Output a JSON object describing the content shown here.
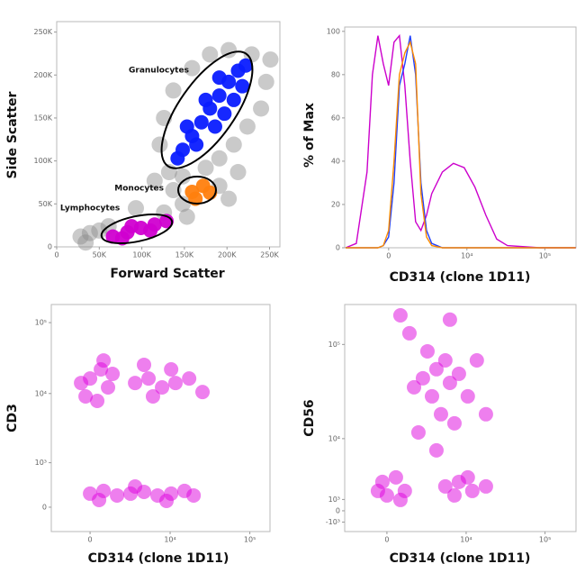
{
  "chart_data": [
    {
      "type": "scatter",
      "x_label": "Forward Scatter",
      "y_label": "Side Scatter",
      "xlim": [
        0,
        262144
      ],
      "ylim": [
        0,
        262144
      ],
      "xticks": [
        0,
        {
          "value": 50000,
          "label": "50K"
        },
        {
          "value": 100000,
          "label": "100K"
        },
        {
          "value": 150000,
          "label": "150K"
        },
        {
          "value": 200000,
          "label": "200K"
        },
        {
          "value": 250000,
          "label": "250K"
        }
      ],
      "yticks": [
        0,
        {
          "value": 50000,
          "label": "50K"
        },
        {
          "value": 100000,
          "label": "100K"
        },
        {
          "value": 150000,
          "label": "150K"
        },
        {
          "value": 200000,
          "label": "200K"
        },
        {
          "value": 250000,
          "label": "250K"
        }
      ],
      "series": [
        {
          "color": "#8a8a8a",
          "x": [
            28000,
            39000,
            50000,
            34000,
            61000,
            126000,
            148000,
            191000,
            202000,
            115000,
            132000,
            126000,
            137000,
            159000,
            180000,
            202000,
            229000,
            246000,
            240000,
            224000,
            208000,
            191000,
            175000,
            148000,
            93000,
            153000,
            213000,
            121000,
            251000,
            137000
          ],
          "y": [
            12000,
            16000,
            19000,
            5000,
            24000,
            40000,
            50000,
            71000,
            56000,
            77000,
            87000,
            150000,
            182000,
            208000,
            224000,
            229000,
            224000,
            192000,
            161000,
            140000,
            119000,
            103000,
            92000,
            82000,
            45000,
            35000,
            87000,
            119000,
            218000,
            66000
          ]
        },
        {
          "name": "Granulocytes",
          "color": "#0a1cff",
          "x": [
            148000,
            159000,
            170000,
            180000,
            191000,
            202000,
            213000,
            222000,
            142000,
            164000,
            186000,
            208000,
            175000,
            197000,
            218000,
            153000,
            191000
          ],
          "y": [
            113000,
            129000,
            145000,
            161000,
            176000,
            192000,
            205000,
            211000,
            103000,
            119000,
            140000,
            171000,
            171000,
            155000,
            187000,
            140000,
            197000
          ]
        },
        {
          "name": "Monocytes",
          "color": "#ff7f0e",
          "x": [
            159000,
            172000,
            180000,
            163000
          ],
          "y": [
            64000,
            71000,
            63000,
            56000
          ]
        },
        {
          "name": "Lymphocytes",
          "color": "#d000d0",
          "x": [
            66000,
            83000,
            99000,
            115000,
            129000,
            77000,
            110000,
            88000
          ],
          "y": [
            12000,
            17000,
            22000,
            26000,
            30000,
            10000,
            19000,
            24000
          ]
        }
      ]
    },
    {
      "type": "line",
      "x_label": "CD314 (clone 1D11)",
      "y_label": "% of Max",
      "xscale": "biexponential",
      "xlim": [
        -3400,
        250000
      ],
      "ylim": [
        0,
        102
      ],
      "xticks": [
        0,
        {
          "value": 10000,
          "label": "10⁴"
        },
        {
          "value": 100000,
          "label": "10⁵"
        }
      ],
      "yticks": [
        0,
        20,
        40,
        60,
        80,
        100
      ],
      "x": [
        -3300,
        -2220,
        -1370,
        -1000,
        -650,
        -320,
        0,
        320,
        650,
        1000,
        1370,
        1780,
        2220,
        2750,
        3300,
        4700,
        6650,
        9230,
        12700,
        17600,
        24200,
        33200,
        86300,
        248000
      ],
      "series": [
        {
          "color": "#cc00cc",
          "values": [
            0,
            2,
            35,
            80,
            98,
            85,
            75,
            95,
            98,
            75,
            40,
            12,
            8,
            15,
            25,
            35,
            39,
            37,
            28,
            15,
            4,
            1,
            0,
            0
          ]
        },
        {
          "color": "#2040ff",
          "values": [
            0,
            0,
            0,
            0,
            0,
            1,
            5,
            30,
            75,
            85,
            98,
            80,
            30,
            8,
            2,
            0,
            0,
            0,
            0,
            0,
            0,
            0,
            0,
            0
          ]
        },
        {
          "color": "#ff8c00",
          "values": [
            0,
            0,
            0,
            0,
            0,
            1,
            8,
            40,
            80,
            90,
            95,
            85,
            25,
            5,
            1,
            0,
            0,
            0,
            0,
            0,
            0,
            0,
            0,
            0
          ]
        }
      ]
    },
    {
      "type": "scatter",
      "x_label": "CD314 (clone 1D11)",
      "y_label": "CD3",
      "xscale": "biexponential",
      "yscale": "biexponential",
      "xlim": [
        -2750,
        178600
      ],
      "ylim": [
        -438,
        180000
      ],
      "xticks": [
        0,
        {
          "value": 10000,
          "label": "10⁴"
        },
        {
          "value": 100000,
          "label": "10⁵"
        }
      ],
      "yticks": [
        0,
        {
          "value": 1000,
          "label": "10³"
        },
        {
          "value": 10000,
          "label": "10⁴"
        },
        {
          "value": 100000,
          "label": "10⁵"
        }
      ],
      "series": [
        {
          "color": "#dd00dd",
          "x": [
            0,
            638,
            1090,
            -262,
            420,
            1400,
            804,
            -529,
            3410,
            5240,
            7880,
            11700,
            17400,
            6000,
            10300,
            25600,
            4550,
            0,
            804,
            1730,
            2920,
            4550,
            6890,
            10300,
            15200,
            19800,
            529,
            3410,
            8990
          ],
          "y": [
            16300,
            21900,
            12200,
            9100,
            7860,
            18900,
            29300,
            14100,
            14100,
            16300,
            12200,
            14100,
            16300,
            9100,
            21900,
            10500,
            25400,
            227,
            276,
            195,
            227,
            259,
            195,
            227,
            276,
            195,
            118,
            362,
            103
          ]
        }
      ]
    },
    {
      "type": "scatter",
      "x_label": "CD314 (clone 1D11)",
      "y_label": "CD56",
      "xscale": "biexponential",
      "yscale": "biexponential",
      "xlim": [
        -3150,
        246000
      ],
      "ylim": [
        -1890,
        262144
      ],
      "xticks": [
        0,
        {
          "value": 10000,
          "label": "10⁴"
        },
        {
          "value": 100000,
          "label": "10⁵"
        }
      ],
      "yticks": [
        {
          "value": -1000,
          "label": "-10³"
        },
        0,
        {
          "value": 1000,
          "label": "10³"
        },
        {
          "value": 10000,
          "label": "10⁴"
        },
        {
          "value": 100000,
          "label": "10⁵"
        }
      ],
      "series": [
        {
          "color": "#dd00dd",
          "x": [
            -265,
            535,
            1100,
            0,
            814,
            -535,
            5330,
            8060,
            12000,
            17900,
            7050,
            10500,
            2520,
            4020,
            6140,
            3470,
            5330,
            8060,
            1760,
            10500,
            2970,
            4650,
            7050,
            2120,
            13700,
            1420,
            6140,
            814,
            17900,
            4020
          ],
          "y": [
            2730,
            3240,
            1800,
            1370,
            956,
            1800,
            2250,
            2730,
            1800,
            2250,
            1370,
            3240,
            44200,
            55000,
            39500,
            28500,
            68100,
            49200,
            35500,
            28500,
            84700,
            18400,
            14700,
            11700,
            68100,
            131000,
            182000,
            202000,
            18400,
            7350
          ]
        }
      ]
    }
  ]
}
